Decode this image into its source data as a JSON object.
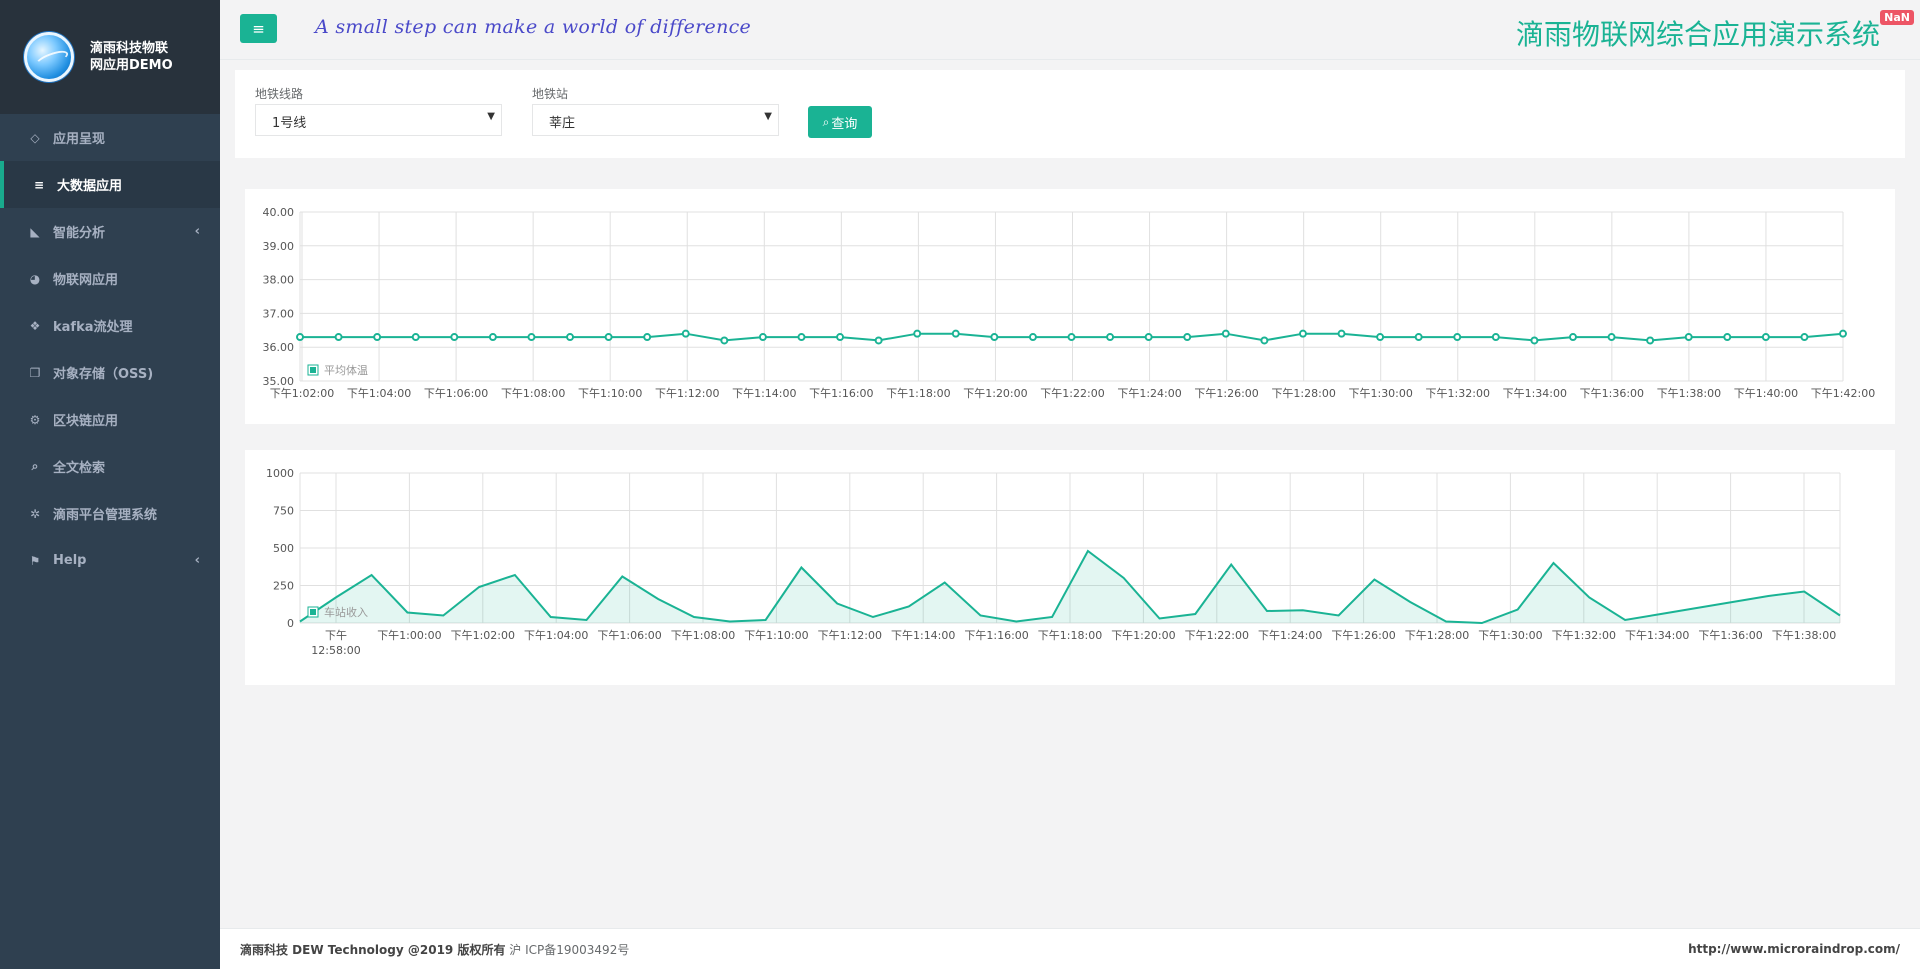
{
  "brand": {
    "line1": "滴雨科技物联",
    "line2": "网应用DEMO"
  },
  "sidebar": {
    "items": [
      {
        "label": "应用呈现",
        "icon": "diamond-icon",
        "glyph": "◇",
        "active": false,
        "arrow": ""
      },
      {
        "label": "大数据应用",
        "icon": "database-icon",
        "glyph": "≡",
        "active": true,
        "arrow": ""
      },
      {
        "label": "智能分析",
        "icon": "area-chart-icon",
        "glyph": "◣",
        "active": false,
        "arrow": "‹"
      },
      {
        "label": "物联网应用",
        "icon": "pie-chart-icon",
        "glyph": "◕",
        "active": false,
        "arrow": ""
      },
      {
        "label": "kafka流处理",
        "icon": "paw-icon",
        "glyph": "❖",
        "active": false,
        "arrow": ""
      },
      {
        "label": "对象存储（OSS)",
        "icon": "copy-icon",
        "glyph": "❐",
        "active": false,
        "arrow": ""
      },
      {
        "label": "区块链应用",
        "icon": "gears-icon",
        "glyph": "⚙",
        "active": false,
        "arrow": ""
      },
      {
        "label": "全文检索",
        "icon": "search-icon",
        "glyph": "⌕",
        "active": false,
        "arrow": ""
      },
      {
        "label": "滴雨平台管理系统",
        "icon": "gear-icon",
        "glyph": "✲",
        "active": false,
        "arrow": ""
      },
      {
        "label": "Help",
        "icon": "flag-icon",
        "glyph": "⚑",
        "active": false,
        "arrow": "‹"
      }
    ]
  },
  "header": {
    "menu_icon": "≡",
    "slogan": "A small step can make a world of difference",
    "title": "滴雨物联网综合应用演示系统",
    "badge": "NaN"
  },
  "filter": {
    "line_label": "地铁线路",
    "line_value": "1号线",
    "station_label": "地铁站",
    "station_value": "莘庄",
    "query_label": "查询",
    "query_icon": "⌕",
    "caret": "▼"
  },
  "colors": {
    "accent": "#1ab394",
    "sidebar": "#2f4050",
    "slogan": "#4a49c9",
    "badge": "#ed5565"
  },
  "chart_data": [
    {
      "type": "line",
      "series": [
        {
          "name": "平均体温",
          "color": "#1ab394",
          "values": [
            36.3,
            36.3,
            36.3,
            36.3,
            36.3,
            36.3,
            36.3,
            36.3,
            36.3,
            36.3,
            36.4,
            36.2,
            36.3,
            36.3,
            36.3,
            36.2,
            36.4,
            36.4,
            36.3,
            36.3,
            36.3,
            36.3,
            36.3,
            36.3,
            36.4,
            36.2,
            36.4,
            36.4,
            36.3,
            36.3,
            36.3,
            36.3,
            36.2,
            36.3,
            36.3,
            36.2,
            36.3,
            36.3,
            36.3,
            36.3,
            36.4
          ]
        }
      ],
      "x_tick_labels": [
        "下午1:02:00",
        "下午1:04:00",
        "下午1:06:00",
        "下午1:08:00",
        "下午1:10:00",
        "下午1:12:00",
        "下午1:14:00",
        "下午1:16:00",
        "下午1:18:00",
        "下午1:20:00",
        "下午1:22:00",
        "下午1:24:00",
        "下午1:26:00",
        "下午1:28:00",
        "下午1:30:00",
        "下午1:32:00",
        "下午1:34:00",
        "下午1:36:00",
        "下午1:38:00",
        "下午1:40:00",
        "下午1:42:00"
      ],
      "y_ticks": [
        "40.00",
        "39.00",
        "38.00",
        "37.00",
        "36.00",
        "35.00"
      ],
      "ylim": [
        35,
        40
      ],
      "markers": true,
      "grid": true,
      "legend": "bottom-left"
    },
    {
      "type": "area",
      "series": [
        {
          "name": "车站收入",
          "color": "#1ab394",
          "values": [
            10,
            170,
            320,
            70,
            50,
            240,
            320,
            40,
            20,
            310,
            160,
            40,
            10,
            20,
            370,
            130,
            40,
            110,
            270,
            50,
            10,
            40,
            480,
            300,
            30,
            60,
            390,
            80,
            85,
            50,
            290,
            140,
            10,
            0,
            90,
            400,
            170,
            20,
            60,
            100,
            140,
            180,
            210,
            50
          ]
        }
      ],
      "x_tick_labels": [
        "下午 12:58:00",
        "下午1:00:00",
        "下午1:02:00",
        "下午1:04:00",
        "下午1:06:00",
        "下午1:08:00",
        "下午1:10:00",
        "下午1:12:00",
        "下午1:14:00",
        "下午1:16:00",
        "下午1:18:00",
        "下午1:20:00",
        "下午1:22:00",
        "下午1:24:00",
        "下午1:26:00",
        "下午1:28:00",
        "下午1:30:00",
        "下午1:32:00",
        "下午1:34:00",
        "下午1:36:00",
        "下午1:38:00"
      ],
      "y_ticks": [
        "1000",
        "750",
        "500",
        "250",
        "0"
      ],
      "ylim": [
        0,
        1000
      ],
      "markers": false,
      "grid": true,
      "legend": "bottom-left"
    }
  ],
  "footer": {
    "company": "滴雨科技 DEW Technology @2019 版权所有",
    "icp": "沪 ICP备19003492号",
    "url": "http://www.microraindrop.com/"
  }
}
